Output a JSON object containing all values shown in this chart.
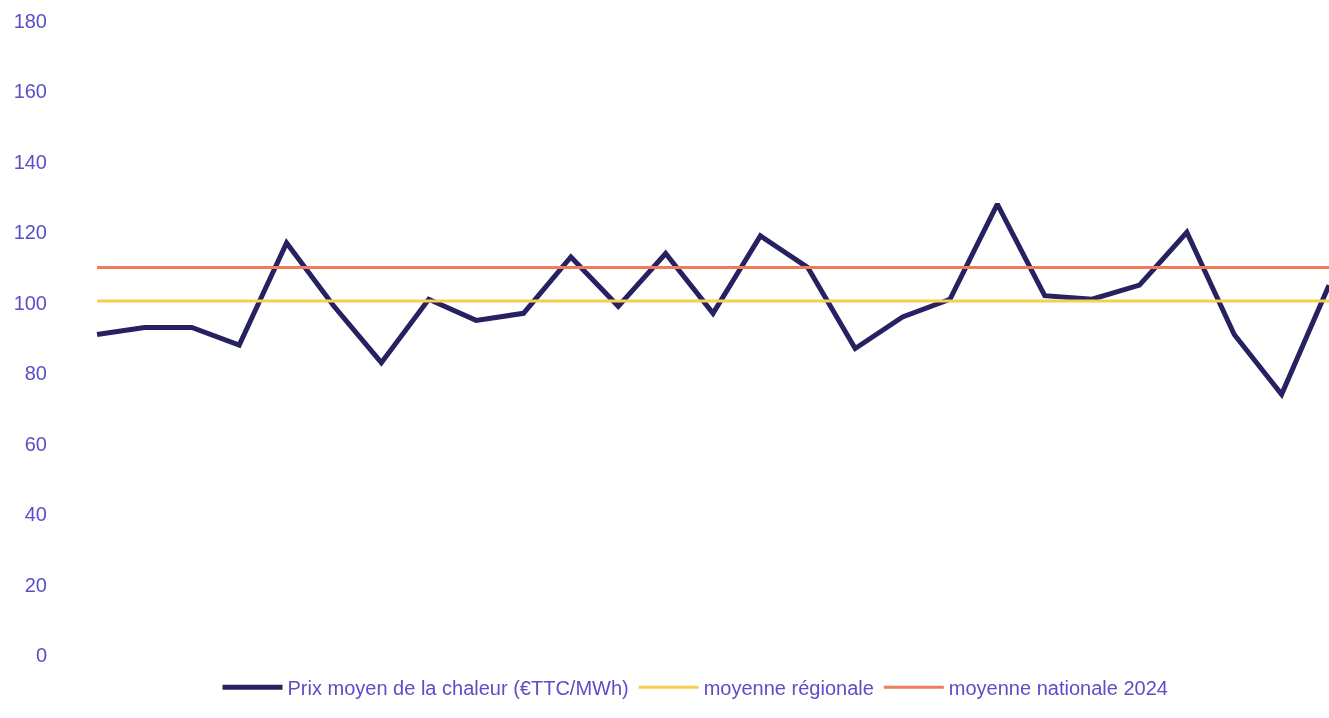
{
  "chart_data": {
    "type": "line",
    "categories": [
      null,
      null,
      null,
      null,
      null,
      null,
      null,
      null,
      null,
      null,
      null,
      null,
      null,
      null,
      null,
      null,
      null,
      null,
      null,
      null,
      null,
      null,
      null,
      null,
      null,
      null,
      null
    ],
    "series": [
      {
        "name": "Prix moyen de la chaleur (€TTC/MWh)",
        "color": "#262160",
        "values": [
          91,
          93,
          93,
          88,
          117,
          99,
          83,
          101,
          95,
          97,
          113,
          99,
          114,
          97,
          119,
          110,
          87,
          96,
          101,
          128,
          102,
          101,
          105,
          120,
          91,
          74,
          105
        ]
      },
      {
        "name": "moyenne régionale",
        "color": "#f6cf4e",
        "values": [
          100.5,
          100.5,
          100.5,
          100.5,
          100.5,
          100.5,
          100.5,
          100.5,
          100.5,
          100.5,
          100.5,
          100.5,
          100.5,
          100.5,
          100.5,
          100.5,
          100.5,
          100.5,
          100.5,
          100.5,
          100.5,
          100.5,
          100.5,
          100.5,
          100.5,
          100.5,
          100.5
        ]
      },
      {
        "name": "moyenne nationale 2024",
        "color": "#f07a5c",
        "values": [
          110,
          110,
          110,
          110,
          110,
          110,
          110,
          110,
          110,
          110,
          110,
          110,
          110,
          110,
          110,
          110,
          110,
          110,
          110,
          110,
          110,
          110,
          110,
          110,
          110,
          110,
          110
        ]
      }
    ],
    "ylim": [
      0,
      180
    ],
    "yticks": [
      0,
      20,
      40,
      60,
      80,
      100,
      120,
      140,
      160,
      180
    ],
    "legend": "bottom",
    "marker": "none",
    "line_style": "solid",
    "tick_labels": "y"
  }
}
